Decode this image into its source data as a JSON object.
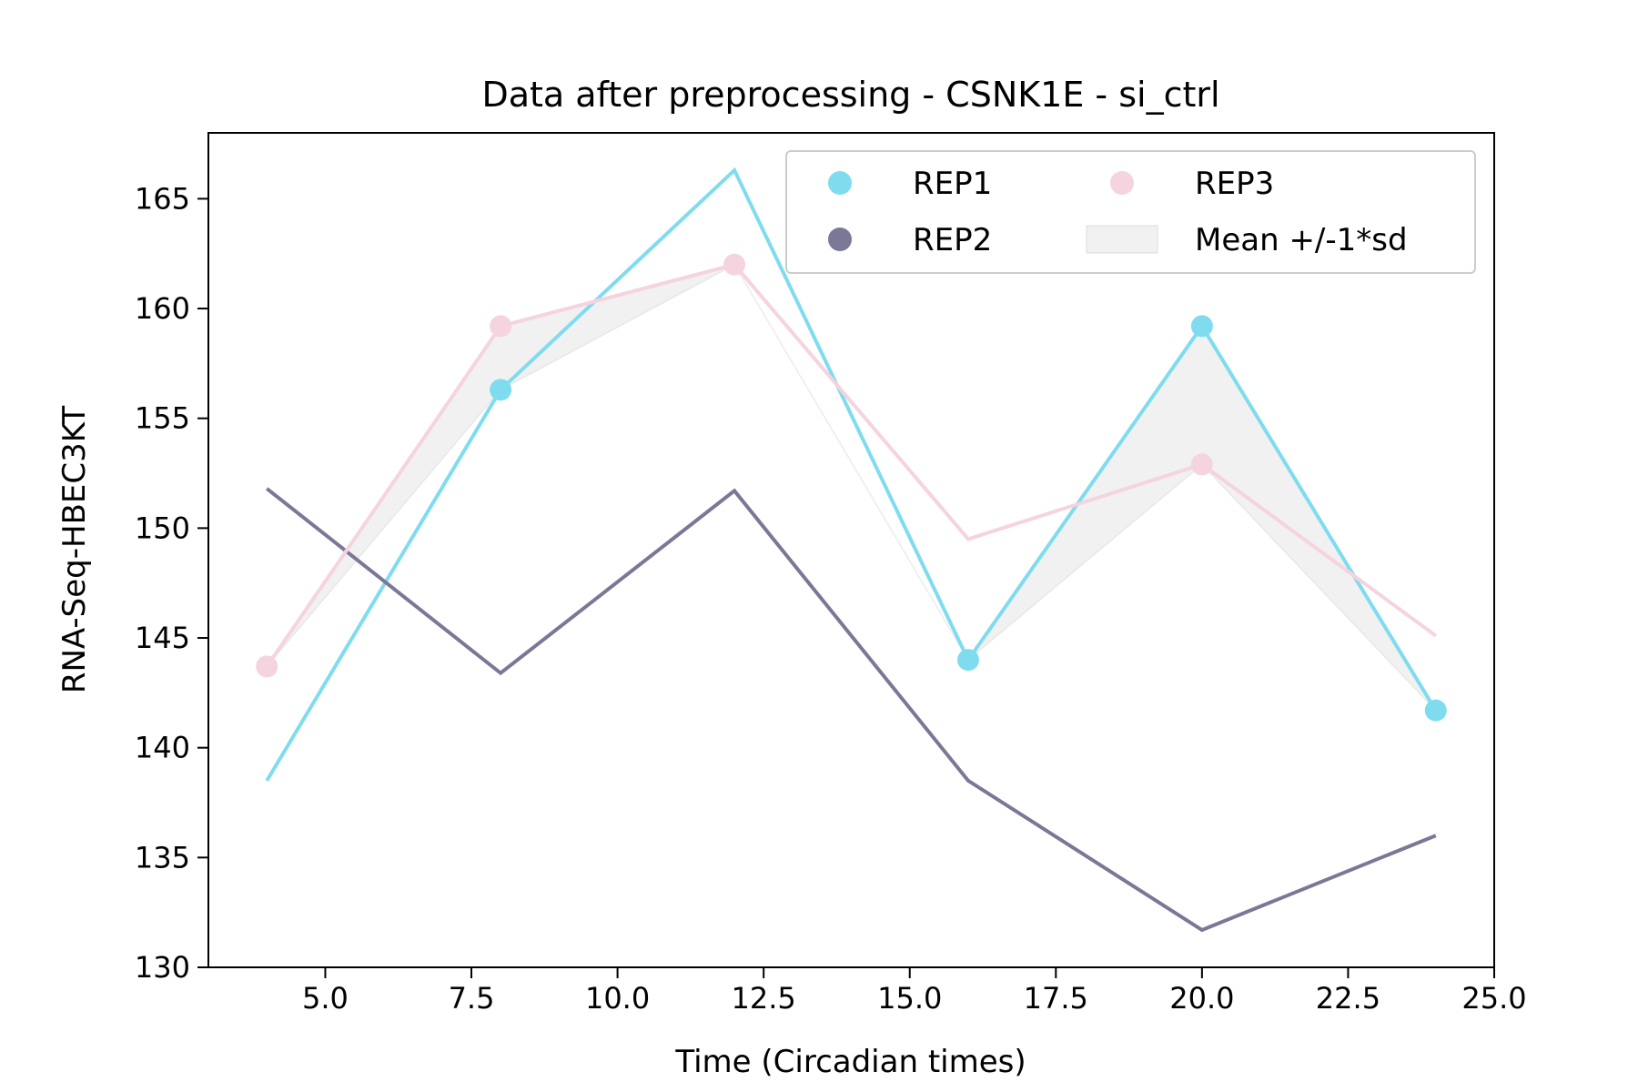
{
  "chart_data": {
    "type": "line",
    "title": "Data after preprocessing - CSNK1E - si_ctrl",
    "xlabel": "Time (Circadian times)",
    "ylabel": "RNA-Seq-HBEC3KT",
    "xlim": [
      3,
      25
    ],
    "ylim": [
      130,
      168
    ],
    "xticks": [
      {
        "value": 5,
        "label": "5.0"
      },
      {
        "value": 7.5,
        "label": "7.5"
      },
      {
        "value": 10,
        "label": "10.0"
      },
      {
        "value": 12.5,
        "label": "12.5"
      },
      {
        "value": 15,
        "label": "15.0"
      },
      {
        "value": 17.5,
        "label": "17.5"
      },
      {
        "value": 20,
        "label": "20.0"
      },
      {
        "value": 22.5,
        "label": "22.5"
      },
      {
        "value": 25,
        "label": "25.0"
      }
    ],
    "yticks": [
      {
        "value": 130,
        "label": "130"
      },
      {
        "value": 135,
        "label": "135"
      },
      {
        "value": 140,
        "label": "140"
      },
      {
        "value": 145,
        "label": "145"
      },
      {
        "value": 150,
        "label": "150"
      },
      {
        "value": 155,
        "label": "155"
      },
      {
        "value": 160,
        "label": "160"
      },
      {
        "value": 165,
        "label": "165"
      }
    ],
    "x": [
      4,
      8,
      12,
      16,
      20,
      24
    ],
    "series": [
      {
        "name": "REP1",
        "color": "#7fdcef",
        "line": [
          138.5,
          156.3,
          166.3,
          144.0,
          159.2,
          141.7
        ],
        "points": [
          [
            8,
            156.3
          ],
          [
            16,
            144.0
          ],
          [
            20,
            159.2
          ],
          [
            24,
            141.7
          ]
        ]
      },
      {
        "name": "REP2",
        "color": "#7b7897",
        "line": [
          151.8,
          143.4,
          151.7,
          138.5,
          131.7,
          136.0
        ],
        "points": []
      },
      {
        "name": "REP3",
        "color": "#f5d3df",
        "line": [
          143.7,
          159.2,
          162.0,
          149.5,
          152.9,
          145.1
        ],
        "points": [
          [
            4,
            143.7
          ],
          [
            8,
            159.2
          ],
          [
            12,
            162.0
          ],
          [
            20,
            152.9
          ]
        ]
      }
    ],
    "band": {
      "name": "Mean +/-1*sd",
      "color": "#d9d9d9",
      "upper": [
        143.7,
        159.2,
        162.0,
        144.0,
        159.2,
        141.7
      ],
      "lower": [
        143.7,
        156.3,
        162.0,
        144.0,
        152.9,
        141.7
      ]
    },
    "legend": {
      "placement": "top-right",
      "columns": 2,
      "order": [
        "REP1",
        "REP2",
        "REP3",
        "Mean +/-1*sd"
      ]
    },
    "grid": false
  }
}
